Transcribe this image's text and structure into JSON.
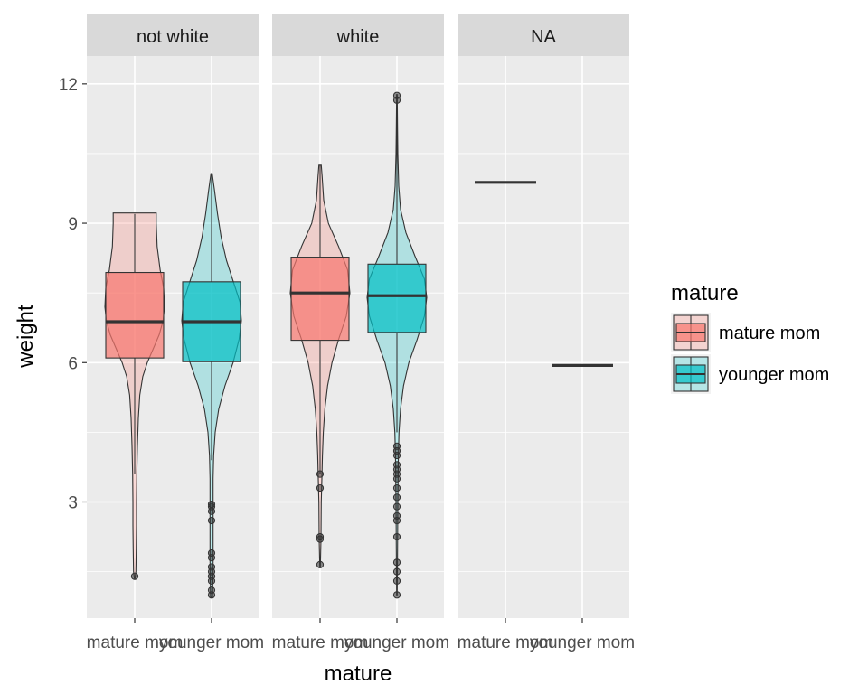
{
  "chart_data": {
    "type": "violin+box",
    "facet_variable": "whitemom",
    "facets": [
      "not white",
      "white",
      "NA"
    ],
    "categories": [
      "mature mom",
      "younger mom"
    ],
    "xlabel": "mature",
    "ylabel": "weight",
    "ylim": [
      0.5,
      12.6
    ],
    "yticks": [
      3,
      6,
      9,
      12
    ],
    "legend": {
      "title": "mature",
      "position": "right",
      "entries": [
        {
          "label": "mature mom",
          "color": "#F8766D"
        },
        {
          "label": "younger mom",
          "color": "#00BFC4"
        }
      ]
    },
    "colors": {
      "mature mom": "#F8766D",
      "younger mom": "#00BFC4",
      "panel": "#EBEBEB",
      "strip": "#D9D9D9"
    },
    "groups": [
      {
        "facet": "not white",
        "category": "mature mom",
        "box": {
          "q1": 6.1,
          "median": 6.88,
          "q3": 7.94
        },
        "whiskers": [
          3.6,
          9.2
        ],
        "outliers": [
          1.4
        ],
        "violin": [
          [
            1.35,
            0.01
          ],
          [
            1.5,
            0.04
          ],
          [
            2.0,
            0.05
          ],
          [
            2.5,
            0.06
          ],
          [
            3.0,
            0.06
          ],
          [
            3.6,
            0.07
          ],
          [
            4.2,
            0.09
          ],
          [
            4.8,
            0.12
          ],
          [
            5.3,
            0.17
          ],
          [
            5.7,
            0.27
          ],
          [
            6.0,
            0.42
          ],
          [
            6.3,
            0.62
          ],
          [
            6.6,
            0.82
          ],
          [
            6.9,
            0.95
          ],
          [
            7.2,
            1.0
          ],
          [
            7.6,
            0.97
          ],
          [
            8.0,
            0.85
          ],
          [
            8.5,
            0.75
          ],
          [
            9.0,
            0.72
          ],
          [
            9.22,
            0.72
          ]
        ]
      },
      {
        "facet": "not white",
        "category": "younger mom",
        "box": {
          "q1": 6.02,
          "median": 6.88,
          "q3": 7.74
        },
        "whiskers": [
          3.9,
          10.05
        ],
        "outliers": [
          2.9,
          2.95,
          2.8,
          2.6,
          1.9,
          1.8,
          1.6,
          1.5,
          1.4,
          1.3,
          1.1,
          1.0
        ],
        "violin": [
          [
            0.95,
            0.03
          ],
          [
            1.5,
            0.05
          ],
          [
            2.5,
            0.05
          ],
          [
            3.5,
            0.05
          ],
          [
            4.0,
            0.07
          ],
          [
            4.5,
            0.12
          ],
          [
            5.0,
            0.24
          ],
          [
            5.5,
            0.45
          ],
          [
            6.0,
            0.72
          ],
          [
            6.5,
            0.92
          ],
          [
            6.9,
            1.0
          ],
          [
            7.3,
            0.95
          ],
          [
            7.8,
            0.7
          ],
          [
            8.2,
            0.5
          ],
          [
            8.7,
            0.32
          ],
          [
            9.2,
            0.2
          ],
          [
            9.7,
            0.1
          ],
          [
            10.07,
            0.02
          ]
        ]
      },
      {
        "facet": "white",
        "category": "mature mom",
        "box": {
          "q1": 6.48,
          "median": 7.5,
          "q3": 8.27
        },
        "whiskers": [
          3.6,
          10.25
        ],
        "outliers": [
          3.6,
          3.3,
          2.2,
          2.25,
          1.65
        ],
        "violin": [
          [
            1.6,
            0.01
          ],
          [
            2.2,
            0.03
          ],
          [
            3.0,
            0.04
          ],
          [
            3.5,
            0.06
          ],
          [
            4.0,
            0.08
          ],
          [
            4.5,
            0.11
          ],
          [
            5.0,
            0.16
          ],
          [
            5.5,
            0.25
          ],
          [
            6.0,
            0.4
          ],
          [
            6.5,
            0.62
          ],
          [
            7.0,
            0.88
          ],
          [
            7.5,
            1.0
          ],
          [
            8.0,
            0.92
          ],
          [
            8.5,
            0.62
          ],
          [
            9.0,
            0.28
          ],
          [
            9.5,
            0.12
          ],
          [
            10.0,
            0.07
          ],
          [
            10.25,
            0.04
          ]
        ]
      },
      {
        "facet": "white",
        "category": "younger mom",
        "box": {
          "q1": 6.65,
          "median": 7.44,
          "q3": 8.12
        },
        "whiskers": [
          4.5,
          11.6
        ],
        "outliers": [
          4.2,
          4.1,
          4.0,
          3.8,
          3.7,
          3.6,
          3.5,
          3.3,
          3.1,
          2.9,
          2.7,
          2.6,
          2.25,
          1.7,
          1.5,
          1.3,
          1.0,
          11.65,
          11.75
        ],
        "violin": [
          [
            1.0,
            0.01
          ],
          [
            2.0,
            0.02
          ],
          [
            3.0,
            0.03
          ],
          [
            4.0,
            0.05
          ],
          [
            4.5,
            0.07
          ],
          [
            5.0,
            0.12
          ],
          [
            5.5,
            0.22
          ],
          [
            6.0,
            0.4
          ],
          [
            6.5,
            0.68
          ],
          [
            7.0,
            0.92
          ],
          [
            7.4,
            1.0
          ],
          [
            7.8,
            0.92
          ],
          [
            8.3,
            0.6
          ],
          [
            8.8,
            0.3
          ],
          [
            9.3,
            0.12
          ],
          [
            9.8,
            0.06
          ],
          [
            10.5,
            0.03
          ],
          [
            11.0,
            0.02
          ],
          [
            11.77,
            0.01
          ]
        ]
      },
      {
        "facet": "NA",
        "category": "mature mom",
        "box": {
          "q1": 9.88,
          "median": 9.88,
          "q3": 9.88
        },
        "whiskers": [
          9.88,
          9.88
        ],
        "outliers": [],
        "violin": []
      },
      {
        "facet": "NA",
        "category": "younger mom",
        "box": {
          "q1": 5.94,
          "median": 5.94,
          "q3": 5.94
        },
        "whiskers": [
          5.94,
          5.94
        ],
        "outliers": [],
        "violin": []
      }
    ]
  }
}
